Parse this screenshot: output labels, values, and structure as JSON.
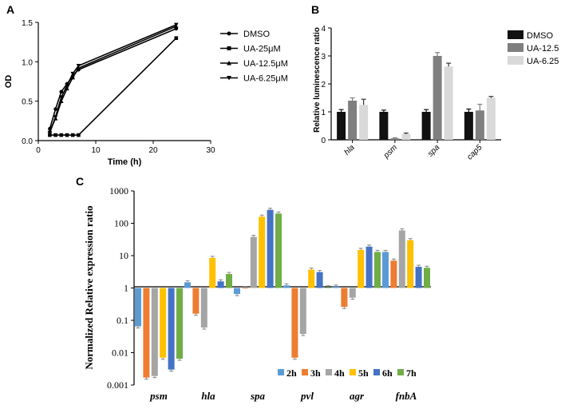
{
  "chart_data": [
    {
      "panel": "A",
      "type": "line",
      "xlabel": "Time (h)",
      "ylabel": "OD",
      "xlim": [
        0,
        30
      ],
      "ylim": [
        0,
        1.5
      ],
      "xticks": [
        0,
        10,
        20,
        30
      ],
      "yticks": [
        0.0,
        0.5,
        1.0,
        1.5
      ],
      "ytick_labels": [
        "0.0",
        "0.5",
        "1.0",
        "1.5"
      ],
      "x": [
        2,
        3,
        4,
        5,
        6,
        7,
        24
      ],
      "series": [
        {
          "name": "DMSO",
          "marker": "circle",
          "values": [
            0.15,
            0.4,
            0.62,
            0.72,
            0.82,
            0.9,
            1.42
          ]
        },
        {
          "name": "UA-25μM",
          "marker": "square",
          "values": [
            0.07,
            0.07,
            0.07,
            0.07,
            0.07,
            0.07,
            1.3
          ]
        },
        {
          "name": "UA-12.5μM",
          "marker": "triangle-up",
          "values": [
            0.12,
            0.28,
            0.5,
            0.66,
            0.8,
            0.92,
            1.45
          ]
        },
        {
          "name": "UA-6.25μM",
          "marker": "triangle-down",
          "values": [
            0.1,
            0.3,
            0.55,
            0.7,
            0.85,
            0.95,
            1.47
          ]
        }
      ]
    },
    {
      "panel": "B",
      "type": "bar",
      "ylabel": "Relative luminescence ratio",
      "ylim": [
        0,
        4
      ],
      "yticks": [
        0,
        1,
        2,
        3,
        4
      ],
      "categories": [
        "hla",
        "psm",
        "spa",
        "cap5"
      ],
      "series": [
        {
          "name": "DMSO",
          "color": "#111111",
          "values": [
            1.0,
            1.0,
            1.0,
            1.0
          ],
          "errors": [
            0.08,
            0.06,
            0.08,
            0.1
          ]
        },
        {
          "name": "UA-12.5",
          "color": "#7f7f7f",
          "values": [
            1.4,
            0.05,
            3.0,
            1.05
          ],
          "errors": [
            0.1,
            0.02,
            0.12,
            0.22
          ]
        },
        {
          "name": "UA-6.25",
          "color": "#d9d9d9",
          "values": [
            1.25,
            0.2,
            2.62,
            1.5
          ],
          "errors": [
            0.2,
            0.04,
            0.12,
            0.05
          ]
        }
      ]
    },
    {
      "panel": "C",
      "type": "bar",
      "scale": "log",
      "baseline": 1,
      "ylabel": "Normalized Relative expression ratio",
      "ylim": [
        0.001,
        1000
      ],
      "yticks": [
        0.001,
        0.01,
        0.1,
        1,
        10,
        100,
        1000
      ],
      "ytick_labels": [
        "0.001",
        "0.01",
        "0.1",
        "1",
        "10",
        "100",
        "1000"
      ],
      "categories": [
        "psm",
        "hla",
        "spa",
        "pvl",
        "agr",
        "fnbA"
      ],
      "series": [
        {
          "name": "2h",
          "color": "#5b9bd5",
          "values": [
            0.065,
            1.5,
            0.65,
            1.2,
            1.1,
            13
          ]
        },
        {
          "name": "3h",
          "color": "#ed7d31",
          "values": [
            0.0017,
            0.16,
            1.0,
            0.007,
            0.26,
            7
          ]
        },
        {
          "name": "4h",
          "color": "#a5a5a5",
          "values": [
            0.0019,
            0.06,
            38,
            0.038,
            0.5,
            60
          ]
        },
        {
          "name": "5h",
          "color": "#ffc000",
          "values": [
            0.007,
            8.5,
            160,
            3.7,
            15,
            30
          ]
        },
        {
          "name": "6h",
          "color": "#4472c4",
          "values": [
            0.003,
            1.6,
            260,
            3.1,
            19,
            4.5
          ]
        },
        {
          "name": "7h",
          "color": "#70ad47",
          "values": [
            0.0065,
            2.7,
            200,
            1.05,
            13,
            4.2
          ]
        }
      ]
    }
  ],
  "panel_labels": [
    "A",
    "B",
    "C"
  ]
}
